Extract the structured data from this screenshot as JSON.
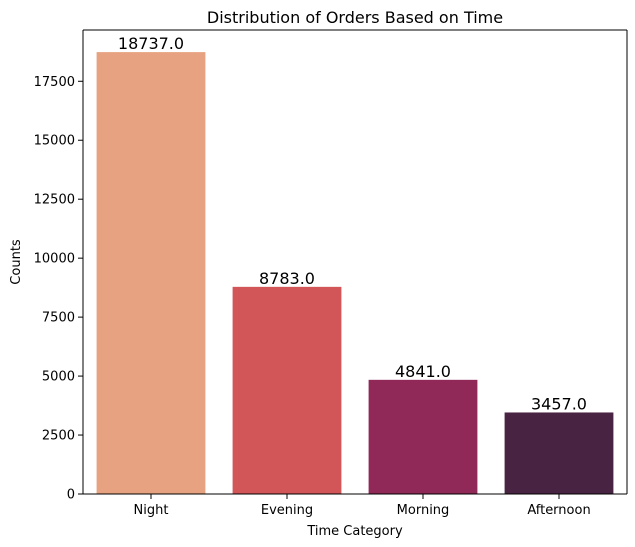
{
  "chart_data": {
    "type": "bar",
    "title": "Distribution of Orders Based on Time",
    "xlabel": "Time Category",
    "ylabel": "Counts",
    "categories": [
      "Night",
      "Evening",
      "Morning",
      "Afternoon"
    ],
    "values": [
      18737.0,
      8783.0,
      4841.0,
      3457.0
    ],
    "value_labels": [
      "18737.0",
      "8783.0",
      "4841.0",
      "3457.0"
    ],
    "colors": [
      "#e7a381",
      "#d25557",
      "#902957",
      "#482342"
    ],
    "ylim": [
      0,
      19674
    ],
    "yticks": [
      0,
      2500,
      5000,
      7500,
      10000,
      12500,
      15000,
      17500
    ],
    "grid": false,
    "legend": "none"
  }
}
